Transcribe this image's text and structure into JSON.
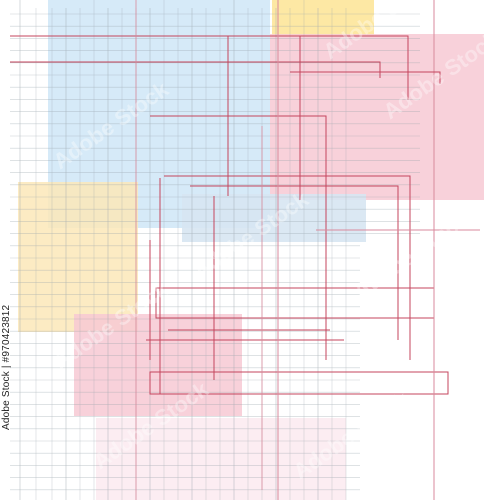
{
  "image": {
    "background_color": "#ffffff",
    "palette": {
      "blue": "#cfe6f7",
      "yellow": "#fbe7b8",
      "yellow_bright": "#fde59a",
      "pink": "#f7c9d3",
      "pink_light": "#f9dfe7",
      "blue_light": "#d7e5f2",
      "grid_gray": "#9aa6ae",
      "line_red": "#c4455d",
      "line_pink": "#d98a9c"
    },
    "watermark_text": "Adobe Stock",
    "stock_id": "Adobe Stock | #970423812"
  }
}
